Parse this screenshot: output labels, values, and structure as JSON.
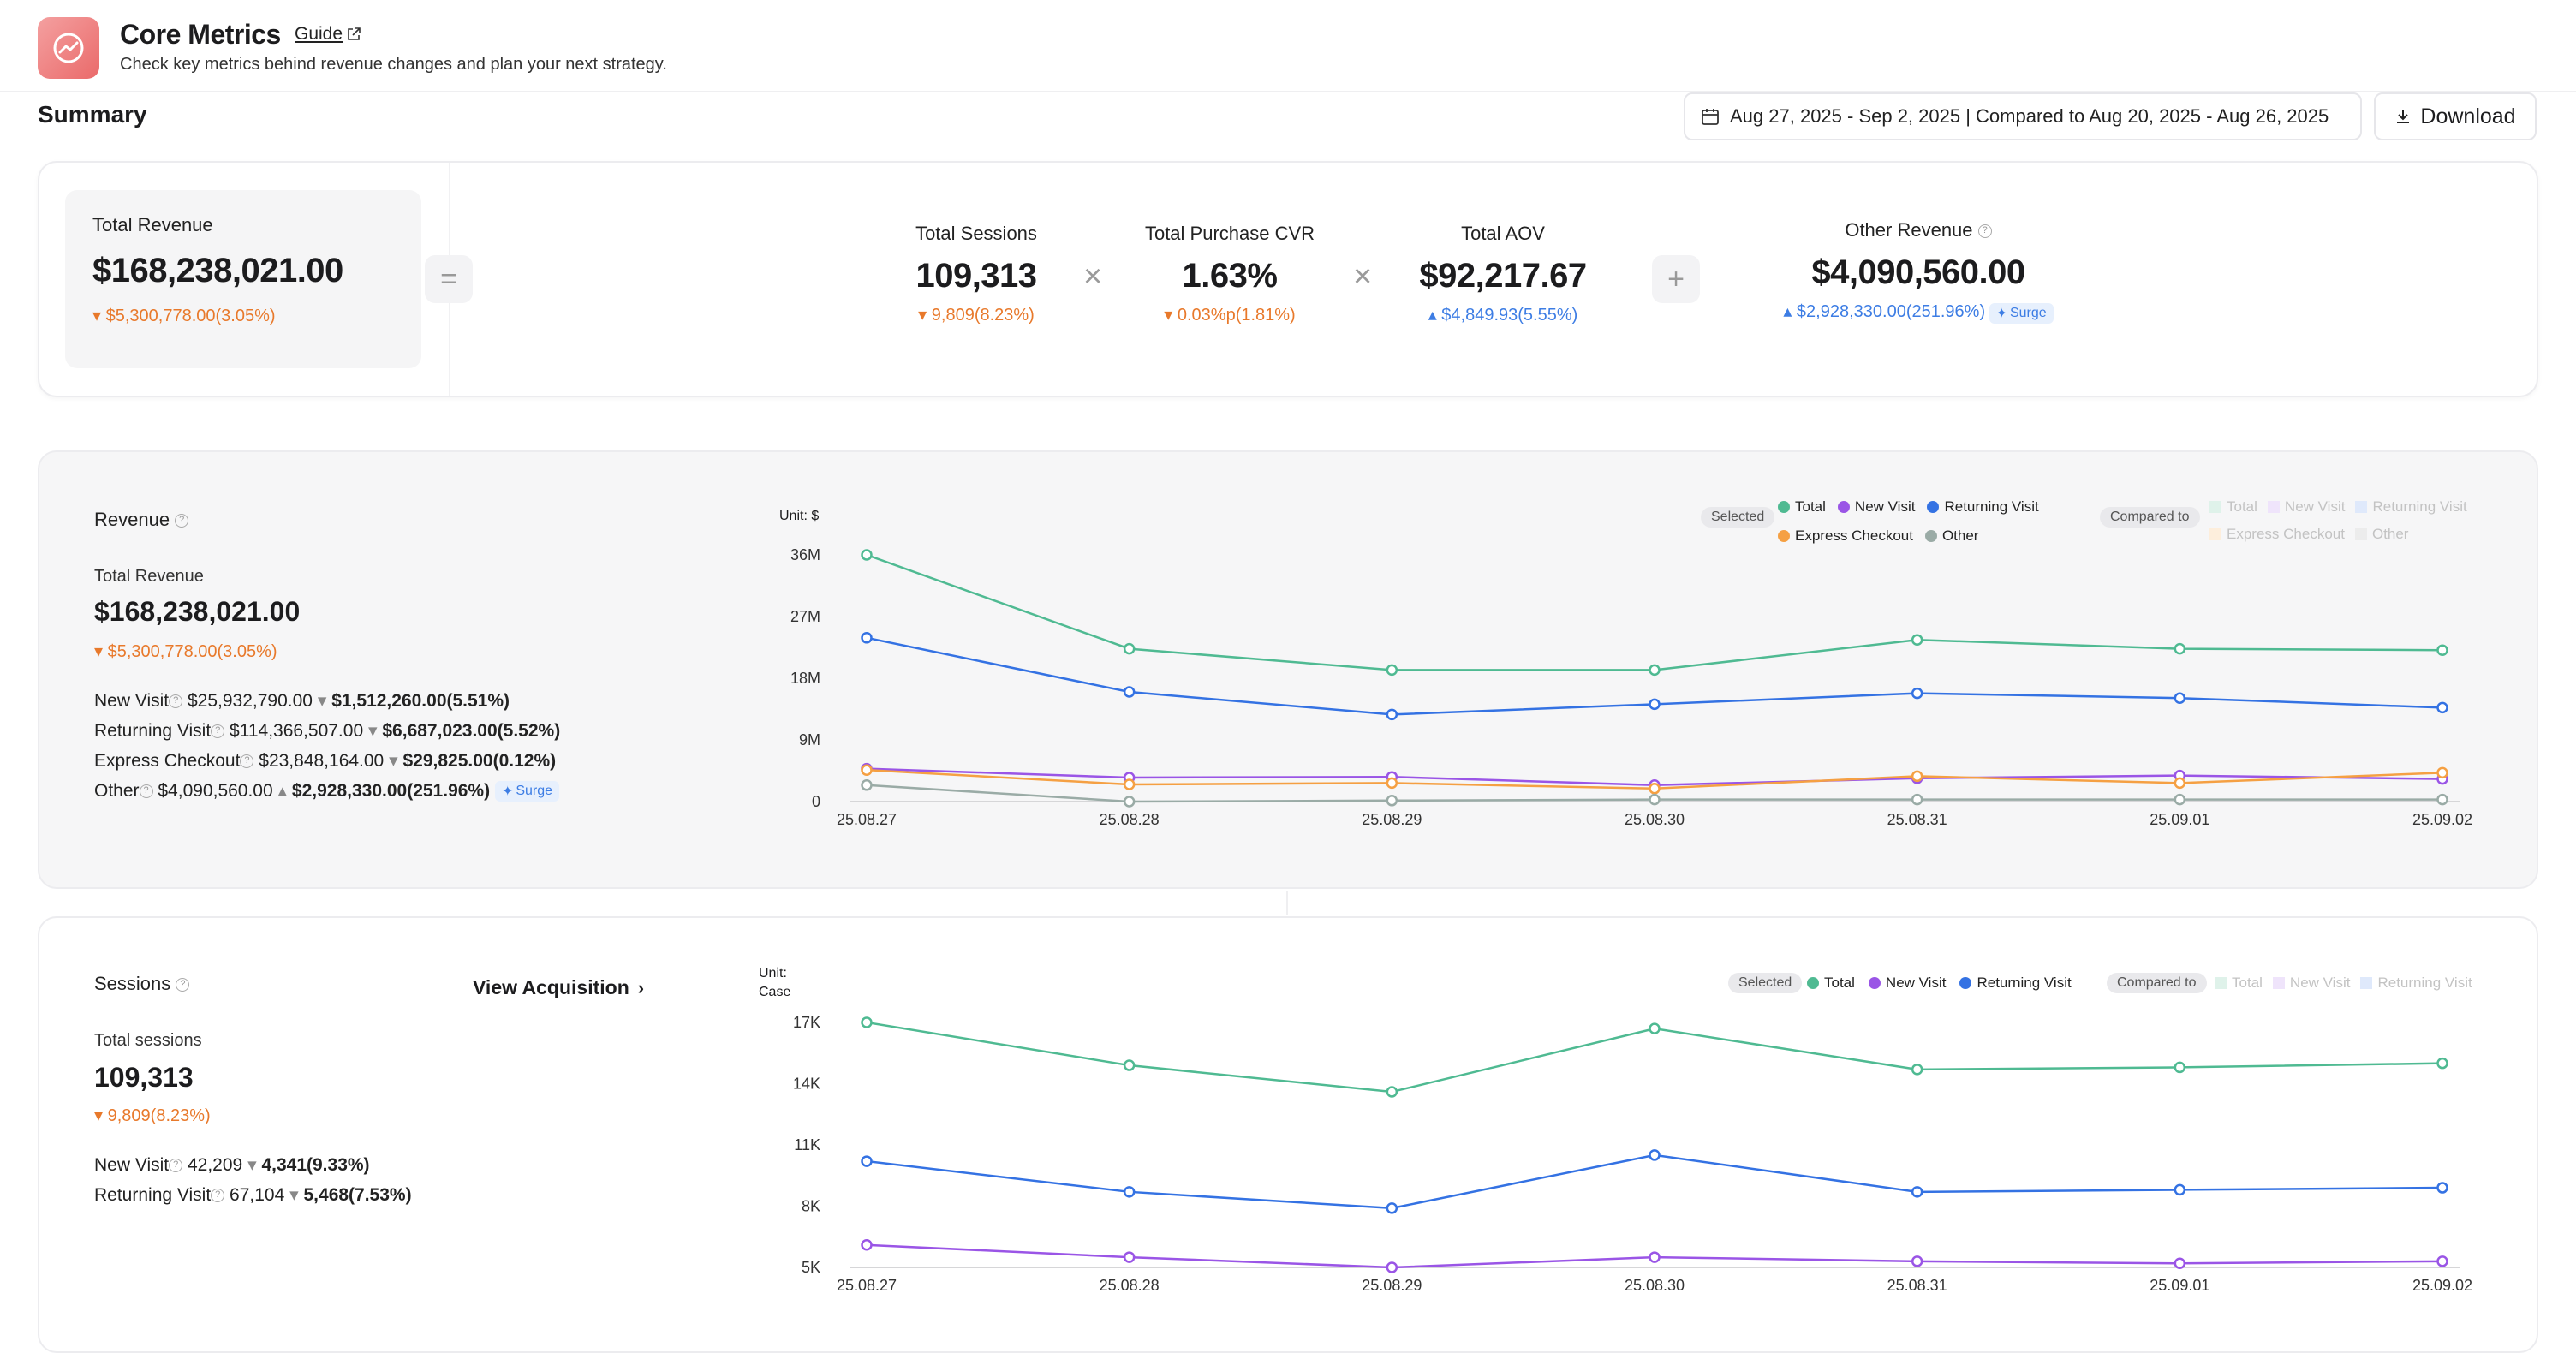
{
  "header": {
    "title": "Core Metrics",
    "guide_label": "Guide",
    "subtitle": "Check key metrics behind revenue changes and plan your next strategy."
  },
  "summary": {
    "title": "Summary",
    "date_range": "Aug 27, 2025 - Sep 2, 2025 | Compared to Aug 20, 2025 - Aug 26, 2025",
    "download_label": "Download",
    "total_revenue": {
      "label": "Total Revenue",
      "value": "$168,238,021.00",
      "delta": "$5,300,778.00(3.05%)"
    },
    "equals_sign": "=",
    "multiply_sign_1": "×",
    "multiply_sign_2": "×",
    "plus_sign": "+",
    "total_sessions": {
      "label": "Total Sessions",
      "value": "109,313",
      "delta": "9,809(8.23%)"
    },
    "purchase_cvr": {
      "label": "Total Purchase CVR",
      "value": "1.63%",
      "delta": "0.03%p(1.81%)"
    },
    "aov": {
      "label": "Total AOV",
      "value": "$92,217.67",
      "delta": "$4,849.93(5.55%)"
    },
    "other_revenue": {
      "label": "Other Revenue",
      "value": "$4,090,560.00",
      "delta": "$2,928,330.00(251.96%)",
      "badge": "Surge"
    }
  },
  "revenue_panel": {
    "title": "Revenue",
    "total_label": "Total Revenue",
    "total_value": "$168,238,021.00",
    "total_delta": "$5,300,778.00(3.05%)",
    "rows": [
      {
        "label": "New Visit",
        "value": "$25,932,790.00",
        "delta": "$1,512,260.00(5.51%)"
      },
      {
        "label": "Returning Visit",
        "value": "$114,366,507.00",
        "delta": "$6,687,023.00(5.52%)"
      },
      {
        "label": "Express Checkout",
        "value": "$23,848,164.00",
        "delta": "$29,825.00(0.12%)"
      },
      {
        "label": "Other",
        "value": "$4,090,560.00",
        "delta": "$2,928,330.00(251.96%)",
        "badge": "Surge"
      }
    ],
    "unit_label": "Unit: $",
    "selected_label": "Selected",
    "compared_label": "Compared to"
  },
  "sessions_panel": {
    "title": "Sessions",
    "view_acquisition": "View Acquisition",
    "total_label": "Total sessions",
    "total_value": "109,313",
    "total_delta": "9,809(8.23%)",
    "rows": [
      {
        "label": "New Visit",
        "value": "42,209",
        "delta": "4,341(9.33%)"
      },
      {
        "label": "Returning Visit",
        "value": "67,104",
        "delta": "5,468(7.53%)"
      }
    ],
    "unit_label_1": "Unit:",
    "unit_label_2": "Case",
    "selected_label": "Selected",
    "compared_label": "Compared to"
  },
  "colors": {
    "total": "#4fba92",
    "new_visit": "#9a55e6",
    "returning_visit": "#3472e3",
    "express_checkout": "#f5a043",
    "other": "#9aaba6",
    "down": "#e8792b",
    "up": "#3d7de4"
  },
  "chart_data": [
    {
      "type": "line",
      "title": "Revenue",
      "ylabel": "Unit: $",
      "categories": [
        "25.08.27",
        "25.08.28",
        "25.08.29",
        "25.08.30",
        "25.08.31",
        "25.09.01",
        "25.09.02"
      ],
      "y_ticks": [
        "0",
        "9M",
        "18M",
        "27M",
        "36M"
      ],
      "ylim": [
        0,
        36000000
      ],
      "grid": false,
      "legend_position": "top-right",
      "series": [
        {
          "name": "Total",
          "color": "#4fba92",
          "values": [
            36000000,
            22300000,
            19200000,
            19200000,
            23600000,
            22300000,
            22100000
          ]
        },
        {
          "name": "New Visit",
          "color": "#9a55e6",
          "values": [
            4800000,
            3500000,
            3600000,
            2400000,
            3400000,
            3800000,
            3300000
          ]
        },
        {
          "name": "Returning Visit",
          "color": "#3472e3",
          "values": [
            23900000,
            16000000,
            12700000,
            14200000,
            15800000,
            15100000,
            13700000
          ]
        },
        {
          "name": "Express Checkout",
          "color": "#f5a043",
          "values": [
            4600000,
            2500000,
            2700000,
            1900000,
            3700000,
            2700000,
            4200000
          ]
        },
        {
          "name": "Other",
          "color": "#9aaba6",
          "values": [
            2400000,
            0,
            150000,
            300000,
            300000,
            300000,
            300000
          ]
        }
      ],
      "compared_legend": [
        "Total",
        "New Visit",
        "Returning Visit",
        "Express Checkout",
        "Other"
      ]
    },
    {
      "type": "line",
      "title": "Sessions",
      "ylabel": "Unit: Case",
      "categories": [
        "25.08.27",
        "25.08.28",
        "25.08.29",
        "25.08.30",
        "25.08.31",
        "25.09.01",
        "25.09.02"
      ],
      "y_ticks": [
        "5K",
        "8K",
        "11K",
        "14K",
        "17K"
      ],
      "ylim": [
        5000,
        17000
      ],
      "grid": false,
      "legend_position": "top-right",
      "series": [
        {
          "name": "Total",
          "color": "#4fba92",
          "values": [
            17000,
            14900,
            13600,
            16700,
            14700,
            14800,
            15000
          ]
        },
        {
          "name": "New Visit",
          "color": "#9a55e6",
          "values": [
            6100,
            5500,
            5000,
            5500,
            5300,
            5200,
            5300
          ]
        },
        {
          "name": "Returning Visit",
          "color": "#3472e3",
          "values": [
            10200,
            8700,
            7900,
            10500,
            8700,
            8800,
            8900
          ]
        }
      ],
      "compared_legend": [
        "Total",
        "New Visit",
        "Returning Visit"
      ]
    }
  ]
}
